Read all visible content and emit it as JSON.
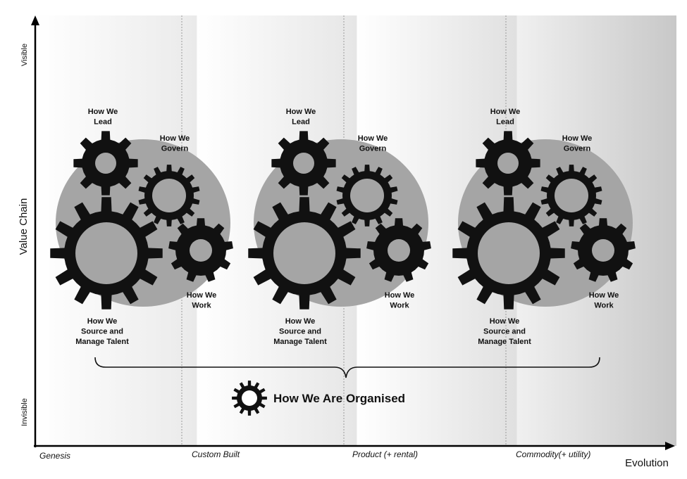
{
  "axes": {
    "y_title": "Value Chain",
    "y_top": "Visible",
    "y_bottom": "Invisible",
    "x_title": "Evolution",
    "stages": [
      "Genesis",
      "Custom Built",
      "Product (+ rental)",
      "Commodity(+ utility)"
    ]
  },
  "groups": [
    {
      "lead": [
        "How We",
        "Lead"
      ],
      "govern": [
        "How We",
        "Govern"
      ],
      "work": [
        "How We",
        "Work"
      ],
      "talent": [
        "How We",
        "Source and",
        "Manage Talent"
      ]
    },
    {
      "lead": [
        "How We",
        "Lead"
      ],
      "govern": [
        "How We",
        "Govern"
      ],
      "work": [
        "How We",
        "Work"
      ],
      "talent": [
        "How We",
        "Source and",
        "Manage Talent"
      ]
    },
    {
      "lead": [
        "How We",
        "Lead"
      ],
      "govern": [
        "How We",
        "Govern"
      ],
      "work": [
        "How We",
        "Work"
      ],
      "talent": [
        "How We",
        "Source and",
        "Manage Talent"
      ]
    }
  ],
  "legend": {
    "label": "How We Are Organised",
    "icon": "gear-icon"
  },
  "colors": {
    "gear": "#111111",
    "disc": "#a5a5a5",
    "hub": "#a5a5a5"
  }
}
